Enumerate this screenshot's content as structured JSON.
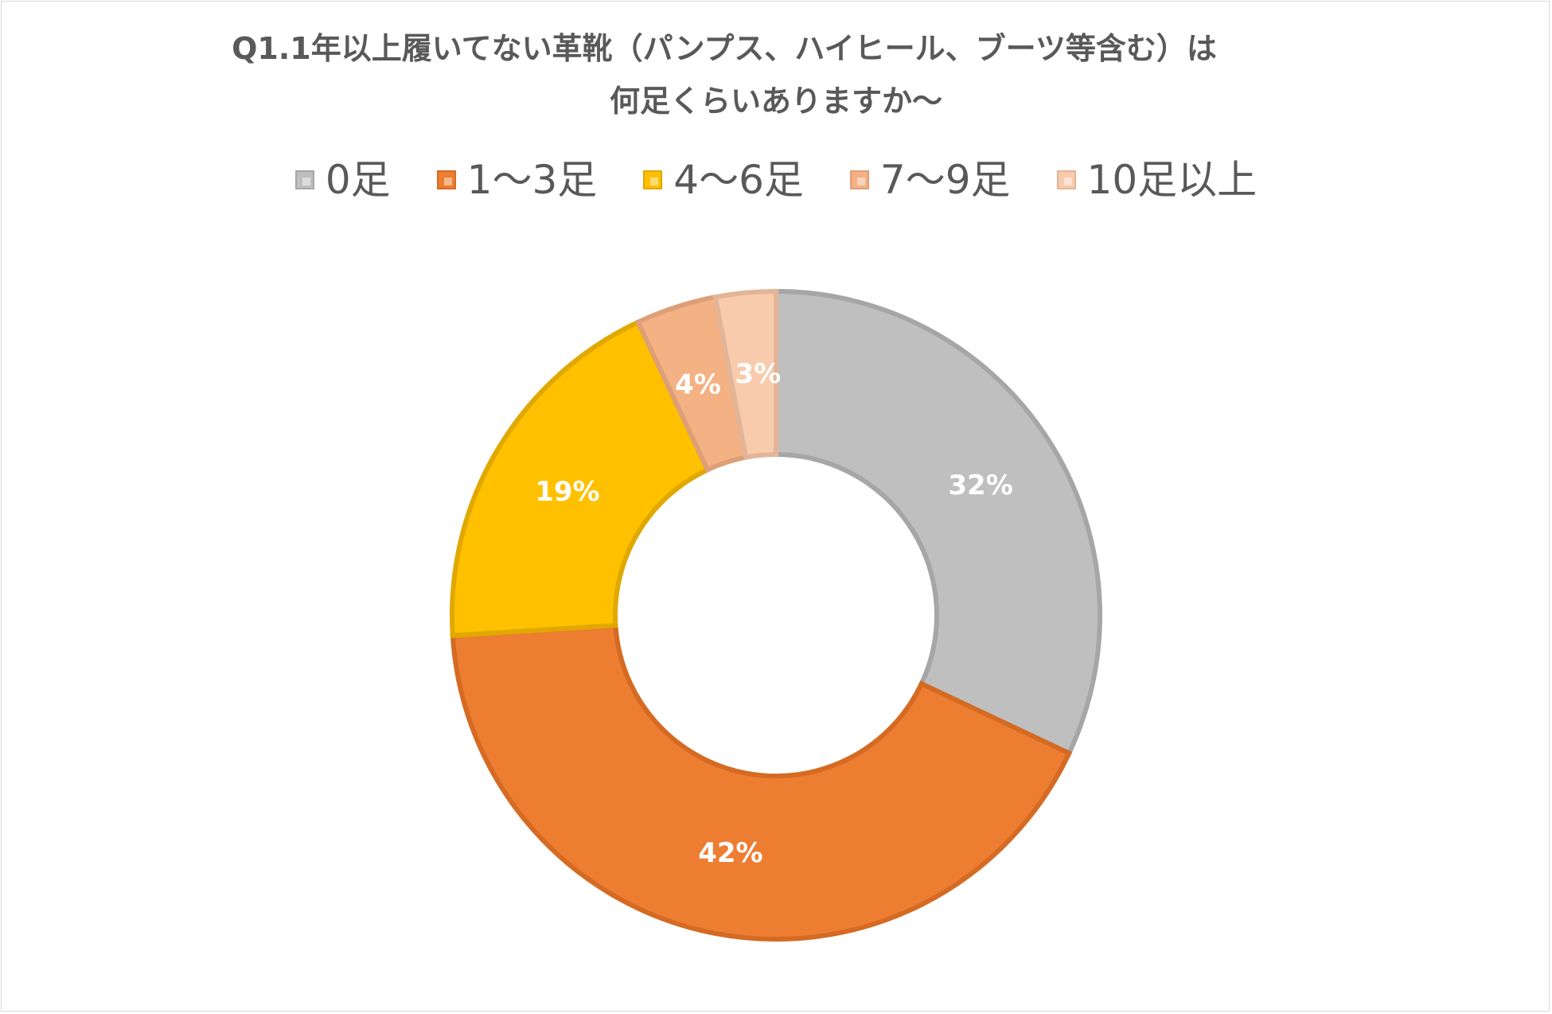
{
  "chart_data": {
    "type": "pie",
    "subtype": "doughnut",
    "title_lines": [
      "Q1.1年以上履いてない革靴（パンプス、ハイヒール、ブーツ等含む）は",
      "何足くらいありますか～"
    ],
    "legend_position": "top",
    "categories": [
      "0足",
      "1～3足",
      "4～6足",
      "7～9足",
      "10足以上"
    ],
    "values": [
      32,
      42,
      19,
      4,
      3
    ],
    "labels": [
      "32%",
      "42%",
      "19%",
      "4%",
      "3%"
    ],
    "colors": [
      "#bfbfbf",
      "#ed7d31",
      "#ffc000",
      "#f4b183",
      "#f8cbad"
    ],
    "border_colors": [
      "#a6a6a6",
      "#d56a23",
      "#e0a800",
      "#dd9f78",
      "#e3b598"
    ]
  }
}
